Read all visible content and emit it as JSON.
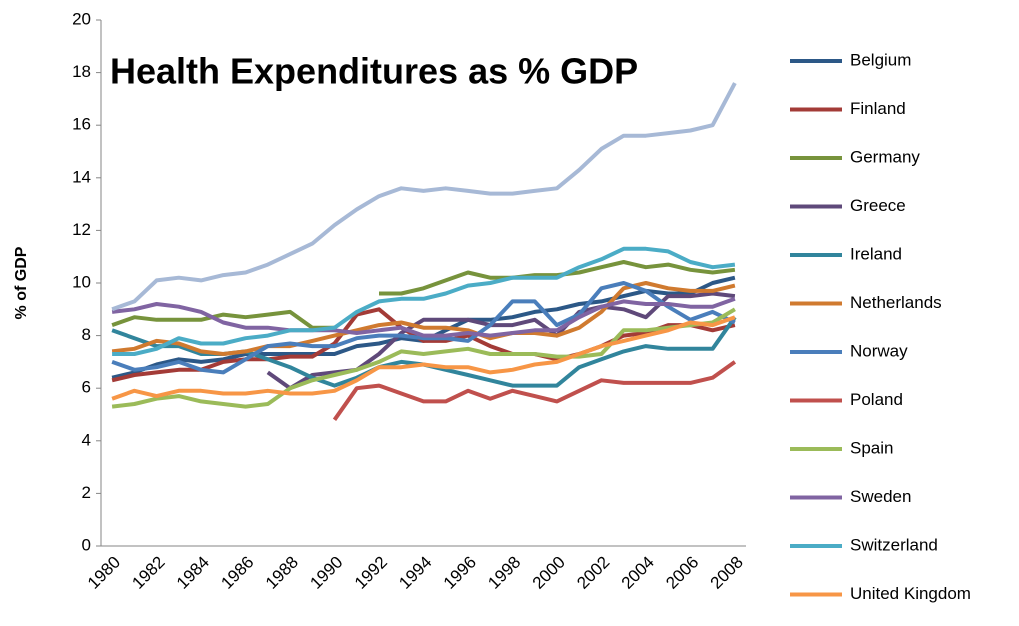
{
  "chart_data": {
    "type": "line",
    "title": "Health Expenditures as % GDP",
    "y_label": "% of GDP",
    "categories": [
      "1980",
      null,
      "1982",
      null,
      "1984",
      null,
      "1986",
      null,
      "1988",
      null,
      "1990",
      null,
      "1992",
      null,
      "1994",
      null,
      "1996",
      null,
      "1998",
      null,
      "2000",
      null,
      "2002",
      null,
      "2004",
      null,
      "2006",
      null,
      "2008"
    ],
    "ylim": [
      0,
      20
    ],
    "yticks": [
      0,
      2,
      4,
      6,
      8,
      10,
      12,
      14,
      16,
      18,
      20
    ],
    "legend": "right",
    "series": [
      {
        "name": "Belgium",
        "color": "#2c5887",
        "values": [
          6.4,
          6.6,
          6.9,
          7.1,
          7.0,
          7.1,
          7.3,
          7.3,
          7.3,
          7.3,
          7.3,
          7.6,
          7.7,
          7.9,
          7.8,
          8.2,
          8.6,
          8.6,
          8.7,
          8.9,
          9.0,
          9.2,
          9.3,
          9.5,
          9.7,
          9.6,
          9.6,
          10.0,
          10.2
        ]
      },
      {
        "name": "Finland",
        "color": "#a33b37",
        "values": [
          6.3,
          6.5,
          6.6,
          6.7,
          6.7,
          7.0,
          7.1,
          7.1,
          7.2,
          7.2,
          7.7,
          8.8,
          9.0,
          8.3,
          7.8,
          7.8,
          8.0,
          7.6,
          7.3,
          7.3,
          7.1,
          7.3,
          7.6,
          8.0,
          8.1,
          8.4,
          8.4,
          8.2,
          8.4
        ]
      },
      {
        "name": "Germany",
        "color": "#77933c",
        "values": [
          8.4,
          8.7,
          8.6,
          8.6,
          8.6,
          8.8,
          8.7,
          8.8,
          8.9,
          8.3,
          8.3,
          null,
          9.6,
          9.6,
          9.8,
          10.1,
          10.4,
          10.2,
          10.2,
          10.3,
          10.3,
          10.4,
          10.6,
          10.8,
          10.6,
          10.7,
          10.5,
          10.4,
          10.5
        ]
      },
      {
        "name": "Greece",
        "color": "#5f497a",
        "values": [
          null,
          null,
          null,
          null,
          null,
          null,
          null,
          6.6,
          6.0,
          6.5,
          6.6,
          6.7,
          7.3,
          8.1,
          8.6,
          8.6,
          8.6,
          8.4,
          8.4,
          8.6,
          8.0,
          8.9,
          9.1,
          9.0,
          8.7,
          9.5,
          9.5,
          9.6,
          9.5
        ]
      },
      {
        "name": "Ireland",
        "color": "#31859c",
        "values": [
          8.2,
          7.9,
          7.6,
          7.6,
          7.3,
          7.3,
          7.4,
          7.1,
          6.8,
          6.4,
          6.1,
          6.4,
          6.8,
          7.0,
          6.9,
          6.7,
          6.5,
          6.3,
          6.1,
          6.1,
          6.1,
          6.8,
          7.1,
          7.4,
          7.6,
          7.5,
          7.5,
          7.5,
          8.7
        ]
      },
      {
        "name": "Netherlands",
        "color": "#d07a2f",
        "values": [
          7.4,
          7.5,
          7.8,
          7.7,
          7.4,
          7.3,
          7.4,
          7.6,
          7.6,
          7.8,
          8.0,
          8.2,
          8.4,
          8.5,
          8.3,
          8.3,
          8.2,
          7.9,
          8.1,
          8.1,
          8.0,
          8.3,
          8.9,
          9.8,
          10.0,
          9.8,
          9.7,
          9.7,
          9.9
        ]
      },
      {
        "name": "Norway",
        "color": "#4a7ebb",
        "values": [
          7.0,
          6.7,
          6.8,
          7.0,
          6.7,
          6.6,
          7.1,
          7.6,
          7.7,
          7.6,
          7.6,
          7.9,
          8.0,
          8.0,
          7.9,
          7.9,
          7.8,
          8.4,
          9.3,
          9.3,
          8.4,
          8.8,
          9.8,
          10.0,
          9.7,
          9.1,
          8.6,
          8.9,
          8.5
        ]
      },
      {
        "name": "Poland",
        "color": "#c0504d",
        "values": [
          null,
          null,
          null,
          null,
          null,
          null,
          null,
          null,
          null,
          null,
          4.8,
          6.0,
          6.1,
          5.8,
          5.5,
          5.5,
          5.9,
          5.6,
          5.9,
          5.7,
          5.5,
          5.9,
          6.3,
          6.2,
          6.2,
          6.2,
          6.2,
          6.4,
          7.0
        ]
      },
      {
        "name": "Spain",
        "color": "#9bbb59",
        "values": [
          5.3,
          5.4,
          5.6,
          5.7,
          5.5,
          5.4,
          5.3,
          5.4,
          6.0,
          6.3,
          6.5,
          6.7,
          7.0,
          7.4,
          7.3,
          7.4,
          7.5,
          7.3,
          7.3,
          7.3,
          7.2,
          7.2,
          7.3,
          8.2,
          8.2,
          8.3,
          8.4,
          8.5,
          9.0
        ]
      },
      {
        "name": "Sweden",
        "color": "#8064a2",
        "values": [
          8.9,
          9.0,
          9.2,
          9.1,
          8.9,
          8.5,
          8.3,
          8.3,
          8.2,
          8.2,
          8.2,
          8.1,
          8.2,
          8.3,
          8.0,
          8.0,
          8.1,
          8.0,
          8.1,
          8.2,
          8.2,
          8.7,
          9.1,
          9.3,
          9.2,
          9.2,
          9.1,
          9.1,
          9.4
        ]
      },
      {
        "name": "Switzerland",
        "color": "#4bacc6",
        "values": [
          7.3,
          7.3,
          7.5,
          7.9,
          7.7,
          7.7,
          7.9,
          8.0,
          8.2,
          8.2,
          8.3,
          8.9,
          9.3,
          9.4,
          9.4,
          9.6,
          9.9,
          10.0,
          10.2,
          10.2,
          10.2,
          10.6,
          10.9,
          11.3,
          11.3,
          11.2,
          10.8,
          10.6,
          10.7
        ]
      },
      {
        "name": "United Kingdom",
        "color": "#f79646",
        "values": [
          5.6,
          5.9,
          5.7,
          5.9,
          5.9,
          5.8,
          5.8,
          5.9,
          5.8,
          5.8,
          5.9,
          6.3,
          6.8,
          6.8,
          6.9,
          6.8,
          6.8,
          6.6,
          6.7,
          6.9,
          7.0,
          7.3,
          7.6,
          7.8,
          8.0,
          8.2,
          8.5,
          8.4,
          8.7
        ]
      },
      {
        "color": "#a7b9d6",
        "values": [
          9.0,
          9.3,
          10.1,
          10.2,
          10.1,
          10.3,
          10.4,
          10.7,
          11.1,
          11.5,
          12.2,
          12.8,
          13.3,
          13.6,
          13.5,
          13.6,
          13.5,
          13.4,
          13.4,
          13.5,
          13.6,
          14.3,
          15.1,
          15.6,
          15.6,
          15.7,
          15.8,
          16.0,
          17.6
        ]
      }
    ]
  }
}
